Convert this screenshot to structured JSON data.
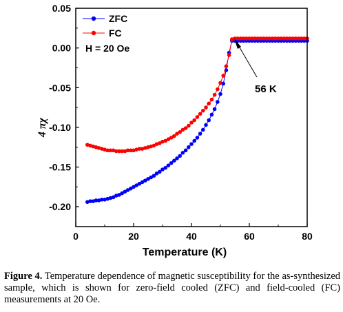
{
  "chart_data": {
    "type": "line",
    "xlabel": "Temperature (K)",
    "ylabel": "4 πχ",
    "xlim": [
      0,
      80
    ],
    "ylim": [
      -0.225,
      0.05
    ],
    "x_ticks": [
      0,
      20,
      40,
      60,
      80
    ],
    "y_ticks": [
      0.05,
      0.0,
      -0.05,
      -0.1,
      -0.15,
      -0.2
    ],
    "y_tick_labels": [
      "0.05",
      "0.00",
      "-0.05",
      "-0.10",
      "-0.15",
      "-0.20"
    ],
    "grid": false,
    "legend_position": "top-left",
    "series": [
      {
        "name": "ZFC",
        "color": "#0000ff",
        "x": [
          4,
          5,
          6,
          7,
          8,
          9,
          10,
          11,
          12,
          13,
          14,
          15,
          16,
          17,
          18,
          19,
          20,
          21,
          22,
          23,
          24,
          25,
          26,
          27,
          28,
          29,
          30,
          31,
          32,
          33,
          34,
          35,
          36,
          37,
          38,
          39,
          40,
          41,
          42,
          43,
          44,
          45,
          46,
          47,
          48,
          49,
          50,
          51,
          52,
          53,
          54,
          55,
          56,
          57,
          58,
          59,
          60,
          61,
          62,
          63,
          64,
          65,
          66,
          67,
          68,
          69,
          70,
          71,
          72,
          73,
          74,
          75,
          76,
          77,
          78,
          79,
          80
        ],
        "y": [
          -0.194,
          -0.193,
          -0.193,
          -0.192,
          -0.192,
          -0.191,
          -0.191,
          -0.19,
          -0.189,
          -0.188,
          -0.186,
          -0.185,
          -0.183,
          -0.181,
          -0.179,
          -0.177,
          -0.175,
          -0.173,
          -0.171,
          -0.169,
          -0.167,
          -0.165,
          -0.163,
          -0.161,
          -0.158,
          -0.156,
          -0.153,
          -0.151,
          -0.148,
          -0.145,
          -0.142,
          -0.139,
          -0.136,
          -0.132,
          -0.129,
          -0.125,
          -0.121,
          -0.117,
          -0.113,
          -0.108,
          -0.103,
          -0.097,
          -0.091,
          -0.084,
          -0.077,
          -0.068,
          -0.058,
          -0.045,
          -0.028,
          -0.006,
          0.009,
          0.009,
          0.009,
          0.009,
          0.009,
          0.009,
          0.009,
          0.009,
          0.009,
          0.009,
          0.009,
          0.009,
          0.009,
          0.009,
          0.009,
          0.009,
          0.009,
          0.009,
          0.009,
          0.009,
          0.009,
          0.009,
          0.009,
          0.009,
          0.009,
          0.009,
          0.009
        ]
      },
      {
        "name": "FC",
        "color": "#ff0000",
        "x": [
          4,
          5,
          6,
          7,
          8,
          9,
          10,
          11,
          12,
          13,
          14,
          15,
          16,
          17,
          18,
          19,
          20,
          21,
          22,
          23,
          24,
          25,
          26,
          27,
          28,
          29,
          30,
          31,
          32,
          33,
          34,
          35,
          36,
          37,
          38,
          39,
          40,
          41,
          42,
          43,
          44,
          45,
          46,
          47,
          48,
          49,
          50,
          51,
          52,
          53,
          54,
          55,
          56,
          57,
          58,
          59,
          60,
          61,
          62,
          63,
          64,
          65,
          66,
          67,
          68,
          69,
          70,
          71,
          72,
          73,
          74,
          75,
          76,
          77,
          78,
          79,
          80
        ],
        "y": [
          -0.122,
          -0.123,
          -0.124,
          -0.125,
          -0.126,
          -0.127,
          -0.128,
          -0.129,
          -0.129,
          -0.129,
          -0.13,
          -0.13,
          -0.13,
          -0.13,
          -0.129,
          -0.129,
          -0.129,
          -0.128,
          -0.127,
          -0.127,
          -0.126,
          -0.125,
          -0.124,
          -0.123,
          -0.121,
          -0.12,
          -0.118,
          -0.117,
          -0.115,
          -0.113,
          -0.111,
          -0.108,
          -0.106,
          -0.103,
          -0.101,
          -0.098,
          -0.094,
          -0.091,
          -0.087,
          -0.083,
          -0.079,
          -0.075,
          -0.07,
          -0.065,
          -0.059,
          -0.052,
          -0.044,
          -0.035,
          -0.023,
          -0.009,
          0.011,
          0.012,
          0.012,
          0.012,
          0.012,
          0.012,
          0.012,
          0.012,
          0.012,
          0.012,
          0.012,
          0.012,
          0.012,
          0.012,
          0.012,
          0.012,
          0.012,
          0.012,
          0.012,
          0.012,
          0.012,
          0.012,
          0.012,
          0.012,
          0.012,
          0.012,
          0.012
        ]
      }
    ],
    "legend_note": "H = 20 Oe",
    "annotation": {
      "text": "56 K",
      "x": 54,
      "y": 0.009
    }
  },
  "caption": {
    "label": "Figure 4.",
    "text": " Temperature dependence of magnetic susceptibility for the as-synthesized sample, which is shown for zero-field cooled (ZFC) and field-cooled (FC) measurements at 20 Oe."
  }
}
